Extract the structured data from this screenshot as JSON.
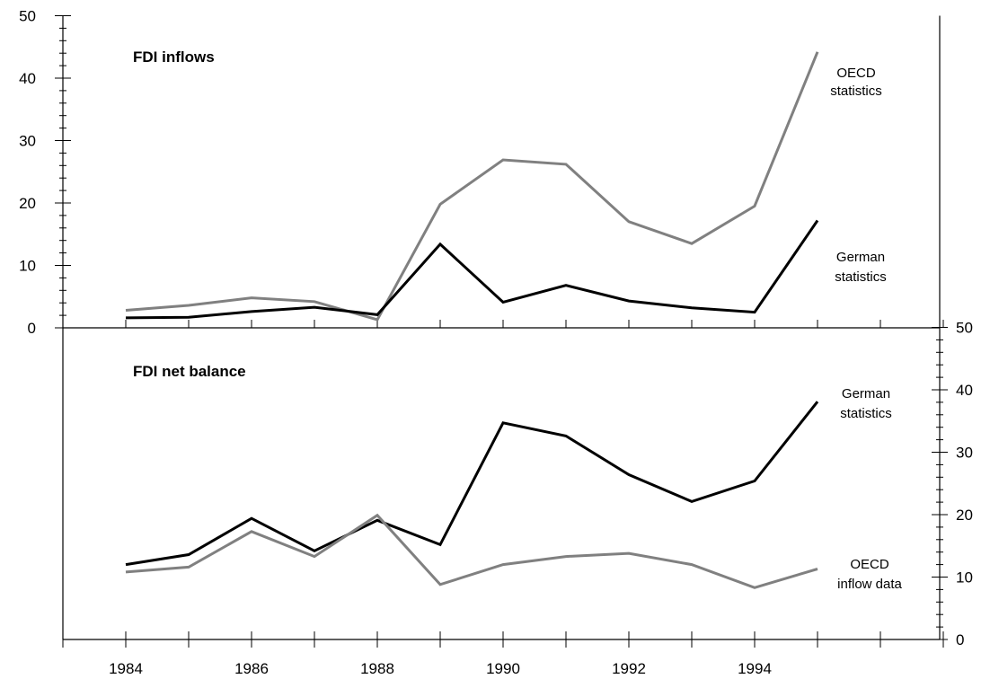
{
  "chart_data": [
    {
      "type": "line",
      "title": "FDI inflows",
      "x": [
        1984,
        1985,
        1986,
        1987,
        1988,
        1989,
        1990,
        1991,
        1992,
        1993,
        1994,
        1995
      ],
      "ylim": [
        0,
        50
      ],
      "y_ticks": [
        "0",
        "10",
        "20",
        "30",
        "40",
        "50"
      ],
      "grid": false,
      "series": [
        {
          "name": "OECD statistics",
          "color": "#808080",
          "values": [
            2.8,
            3.6,
            4.8,
            4.2,
            1.3,
            19.8,
            26.9,
            26.2,
            17.0,
            13.5,
            19.5,
            44.2
          ]
        },
        {
          "name": "German statistics",
          "color": "#000000",
          "values": [
            1.6,
            1.7,
            2.6,
            3.3,
            2.1,
            13.4,
            4.1,
            6.8,
            4.3,
            3.2,
            2.5,
            17.2
          ]
        }
      ]
    },
    {
      "type": "line",
      "title": "FDI net balance",
      "x": [
        1984,
        1985,
        1986,
        1987,
        1988,
        1989,
        1990,
        1991,
        1992,
        1993,
        1994,
        1995
      ],
      "ylim": [
        0,
        50
      ],
      "y_ticks": [
        "0",
        "10",
        "20",
        "30",
        "40",
        "50"
      ],
      "grid": false,
      "series": [
        {
          "name": "German statistics",
          "color": "#000000",
          "values": [
            12.0,
            13.6,
            19.4,
            14.2,
            19.1,
            15.2,
            34.7,
            32.6,
            26.4,
            22.1,
            25.4,
            38.1
          ]
        },
        {
          "name": "OECD inflow data",
          "color": "#808080",
          "values": [
            10.8,
            11.6,
            17.3,
            13.3,
            19.9,
            8.8,
            12.0,
            13.3,
            13.8,
            12.0,
            8.3,
            11.3
          ]
        }
      ]
    }
  ],
  "x_tick_labels": [
    "1984",
    "1986",
    "1988",
    "1990",
    "1992",
    "1994"
  ],
  "x_ticks": [
    1984,
    1985,
    1986,
    1987,
    1988,
    1989,
    1990,
    1991,
    1992,
    1993,
    1994,
    1995,
    1996,
    1997
  ],
  "x_range": [
    1983,
    1997.5
  ],
  "series_labels": {
    "oecd_statistics": [
      "OECD",
      "statistics"
    ],
    "german_statistics_top": [
      "German",
      "statistics"
    ],
    "german_statistics_bottom": [
      "German",
      "statistics"
    ],
    "oecd_inflow_data": [
      "OECD",
      "inflow data"
    ]
  }
}
